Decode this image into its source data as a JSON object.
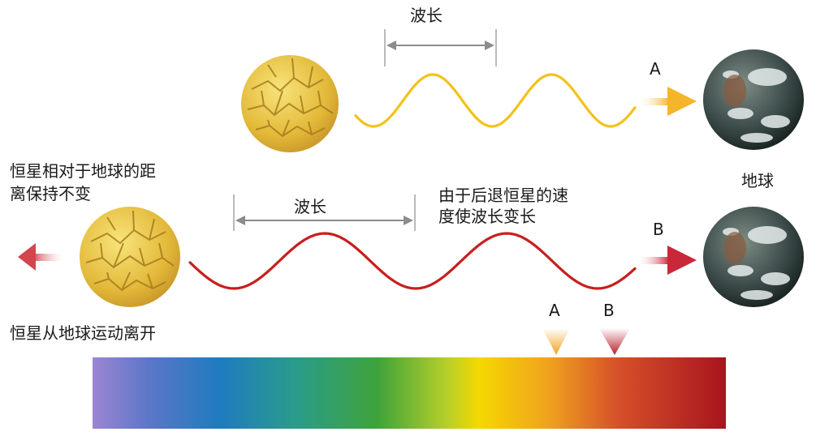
{
  "labels": {
    "wavelength_top": "波长",
    "wavelength_bottom": "波长",
    "marker_a": "A",
    "marker_b": "B",
    "spectrum_a": "A",
    "spectrum_b": "B",
    "earth": "地球",
    "constant_distance": [
      "恒星相对于地球的距",
      "离保持不变"
    ],
    "receding": "恒星从地球运动离开",
    "redshift_reason": [
      "由于后退恒星的速",
      "度使波长变长"
    ]
  },
  "colors": {
    "wave_top": "#f2c21a",
    "wave_bottom": "#c81e1e",
    "arrow_a": "#f5b52a",
    "arrow_b": "#c8283a",
    "left_arrow": "#d2464e",
    "dimension_line": "#8c8c8c",
    "star_base": "#e8c24a",
    "star_cracks": "#a67c1e",
    "earth_ocean": "#3a4a4a",
    "earth_clouds": "#e6ecec"
  },
  "icons": {
    "star": "star-icon",
    "earth": "earth-icon",
    "arrow": "arrow-icon",
    "marker": "triangle-marker-icon"
  }
}
